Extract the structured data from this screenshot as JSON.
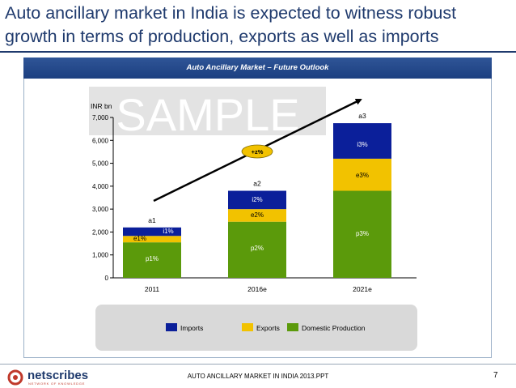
{
  "slide": {
    "title": "Auto ancillary market in India is expected to witness robust growth in terms of production, exports as well as imports",
    "panel_header": "Auto Ancillary Market – Future Outlook",
    "watermark": "SAMPLE",
    "footer_text": "AUTO ANCILLARY MARKET IN INDIA 2013.PPT",
    "page_number": "7",
    "logo_text": "netscribes",
    "logo_tagline": "NETWORK OF KNOWLEDGE"
  },
  "chart_data": {
    "type": "bar",
    "stacked": true,
    "unit_label": "INR bn",
    "categories": [
      "2011",
      "2016e",
      "2021e"
    ],
    "ylim": [
      0,
      7000
    ],
    "yticks": [
      0,
      1000,
      2000,
      3000,
      4000,
      5000,
      6000,
      7000
    ],
    "ytick_labels": [
      "0",
      "1,000",
      "2,000",
      "3,000",
      "4,000",
      "5,000",
      "6,000",
      "7,000"
    ],
    "series": [
      {
        "name": "Domestic Production",
        "color": "#5b9a0b",
        "values": [
          1550,
          2450,
          3800
        ],
        "labels": [
          "p1%",
          "p2%",
          "p3%"
        ]
      },
      {
        "name": "Exports",
        "color": "#f2c200",
        "values": [
          280,
          550,
          1400
        ],
        "labels": [
          "e1%",
          "e2%",
          "e3%"
        ]
      },
      {
        "name": "Imports",
        "color": "#0b1f9a",
        "values": [
          370,
          800,
          1550
        ],
        "labels": [
          "i1%",
          "i2%",
          "i3%"
        ]
      }
    ],
    "totals_labels": [
      "a1",
      "a2",
      "a3"
    ],
    "growth_label": "+z%",
    "legend": {
      "position": "bottom",
      "order": [
        "Imports",
        "Exports",
        "Domestic Production"
      ]
    },
    "grid": false
  }
}
